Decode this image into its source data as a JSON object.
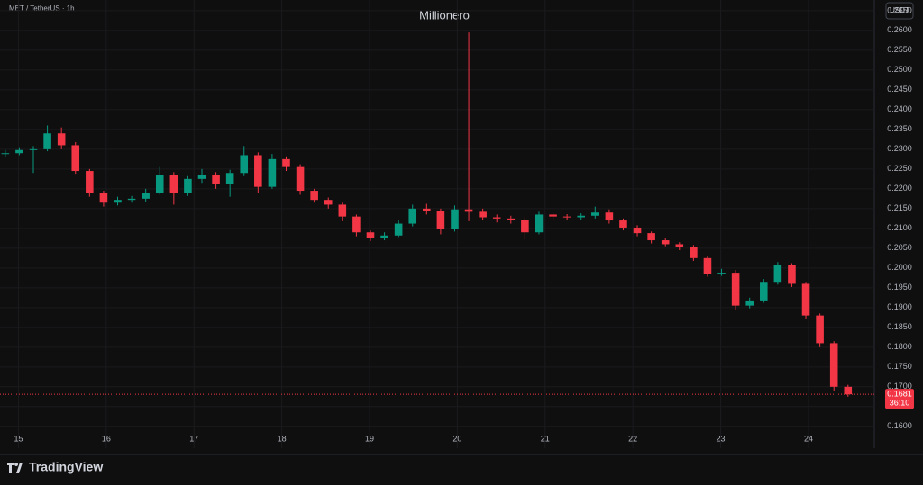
{
  "chart_data": {
    "type": "candlestick",
    "symbol": "MET / TetherUS · 1h",
    "title": "Millionero",
    "currency": "USDT",
    "countdown": "36:10",
    "brand": "TradingView",
    "up_color": "#089981",
    "down_color": "#f23645",
    "x": [
      14.85,
      15.01,
      15.17,
      15.33,
      15.49,
      15.65,
      15.81,
      15.97,
      16.13,
      16.29,
      16.45,
      16.61,
      16.77,
      16.93,
      17.09,
      17.25,
      17.41,
      17.57,
      17.73,
      17.89,
      18.05,
      18.21,
      18.37,
      18.53,
      18.69,
      18.85,
      19.01,
      19.17,
      19.33,
      19.49,
      19.65,
      19.81,
      19.97,
      20.13,
      20.29,
      20.45,
      20.61,
      20.77,
      20.93,
      21.09,
      21.25,
      21.41,
      21.57,
      21.73,
      21.89,
      22.05,
      22.21,
      22.37,
      22.53,
      22.69,
      22.85,
      23.01,
      23.17,
      23.33,
      23.49,
      23.65,
      23.81,
      23.97,
      24.13,
      24.29,
      24.45
    ],
    "open": [
      0.2288,
      0.229,
      0.2298,
      0.23,
      0.234,
      0.231,
      0.2245,
      0.219,
      0.2165,
      0.2172,
      0.2175,
      0.219,
      0.2235,
      0.219,
      0.2225,
      0.2235,
      0.2212,
      0.224,
      0.2285,
      0.2205,
      0.2275,
      0.2255,
      0.2195,
      0.2172,
      0.216,
      0.213,
      0.209,
      0.2075,
      0.2082,
      0.2112,
      0.215,
      0.2145,
      0.2098,
      0.2148,
      0.2142,
      0.2128,
      0.2125,
      0.2122,
      0.209,
      0.2135,
      0.213,
      0.2128,
      0.2132,
      0.214,
      0.212,
      0.2102,
      0.2088,
      0.207,
      0.206,
      0.2052,
      0.2025,
      0.1985,
      0.1988,
      0.1905,
      0.1918,
      0.1965,
      0.2008,
      0.196,
      0.188,
      0.181,
      0.17
    ],
    "high": [
      0.2298,
      0.2305,
      0.2308,
      0.236,
      0.2355,
      0.2318,
      0.225,
      0.2195,
      0.218,
      0.2182,
      0.22,
      0.2255,
      0.2242,
      0.2232,
      0.225,
      0.2242,
      0.2248,
      0.2308,
      0.2292,
      0.2288,
      0.2282,
      0.2262,
      0.22,
      0.2178,
      0.2165,
      0.2135,
      0.2095,
      0.209,
      0.212,
      0.216,
      0.2162,
      0.215,
      0.2158,
      0.2595,
      0.215,
      0.2135,
      0.2132,
      0.2128,
      0.2142,
      0.214,
      0.2136,
      0.2138,
      0.2155,
      0.2148,
      0.2125,
      0.2108,
      0.2092,
      0.2075,
      0.2065,
      0.2058,
      0.203,
      0.1998,
      0.1995,
      0.1925,
      0.1972,
      0.2015,
      0.2012,
      0.1965,
      0.1885,
      0.1815,
      0.1705
    ],
    "low": [
      0.228,
      0.2285,
      0.224,
      0.2295,
      0.23,
      0.2238,
      0.218,
      0.2155,
      0.2158,
      0.2165,
      0.2168,
      0.2185,
      0.216,
      0.2182,
      0.2215,
      0.22,
      0.218,
      0.2232,
      0.219,
      0.22,
      0.2245,
      0.2185,
      0.2165,
      0.215,
      0.2118,
      0.208,
      0.2068,
      0.207,
      0.2078,
      0.2105,
      0.2135,
      0.2085,
      0.2092,
      0.2118,
      0.212,
      0.2115,
      0.2112,
      0.2072,
      0.2085,
      0.2122,
      0.212,
      0.2122,
      0.2125,
      0.2112,
      0.2095,
      0.208,
      0.2062,
      0.2055,
      0.2045,
      0.2018,
      0.1978,
      0.198,
      0.1895,
      0.1898,
      0.1912,
      0.1958,
      0.1952,
      0.187,
      0.18,
      0.169,
      0.1675
    ],
    "close": [
      0.229,
      0.2298,
      0.23,
      0.234,
      0.231,
      0.2245,
      0.219,
      0.2165,
      0.2172,
      0.2175,
      0.219,
      0.2235,
      0.219,
      0.2225,
      0.2235,
      0.2212,
      0.224,
      0.2285,
      0.2205,
      0.2275,
      0.2255,
      0.2195,
      0.2172,
      0.216,
      0.213,
      0.209,
      0.2075,
      0.2082,
      0.2112,
      0.215,
      0.2145,
      0.2098,
      0.2148,
      0.2142,
      0.2128,
      0.2125,
      0.2122,
      0.209,
      0.2135,
      0.213,
      0.2128,
      0.2132,
      0.214,
      0.212,
      0.2102,
      0.2088,
      0.207,
      0.206,
      0.2052,
      0.2025,
      0.1985,
      0.1988,
      0.1905,
      0.1918,
      0.1965,
      0.2008,
      0.196,
      0.188,
      0.181,
      0.17,
      0.1681
    ],
    "last_price": 0.1681,
    "xlim": [
      14.79,
      24.75
    ],
    "xticks": [
      15,
      16,
      17,
      18,
      19,
      20,
      21,
      22,
      23,
      24
    ],
    "ylim": [
      0.1545,
      0.2677
    ],
    "yticks": [
      {
        "value": 0.16,
        "label": "0.1600"
      },
      {
        "value": 0.165,
        "label": "0.1650"
      },
      {
        "value": 0.17,
        "label": "0.1700"
      },
      {
        "value": 0.175,
        "label": "0.1750"
      },
      {
        "value": 0.18,
        "label": "0.1800"
      },
      {
        "value": 0.185,
        "label": "0.1850"
      },
      {
        "value": 0.19,
        "label": "0.1900"
      },
      {
        "value": 0.195,
        "label": "0.1950"
      },
      {
        "value": 0.2,
        "label": "0.2000"
      },
      {
        "value": 0.205,
        "label": "0.2050"
      },
      {
        "value": 0.21,
        "label": "0.2100"
      },
      {
        "value": 0.215,
        "label": "0.2150"
      },
      {
        "value": 0.22,
        "label": "0.2200"
      },
      {
        "value": 0.225,
        "label": "0.2250"
      },
      {
        "value": 0.23,
        "label": "0.2300"
      },
      {
        "value": 0.235,
        "label": "0.2350"
      },
      {
        "value": 0.24,
        "label": "0.2400"
      },
      {
        "value": 0.245,
        "label": "0.2450"
      },
      {
        "value": 0.25,
        "label": "0.2500"
      },
      {
        "value": 0.255,
        "label": "0.2550"
      },
      {
        "value": 0.26,
        "label": "0.2600"
      },
      {
        "value": 0.265,
        "label": "0.2650"
      }
    ],
    "grid": true
  }
}
